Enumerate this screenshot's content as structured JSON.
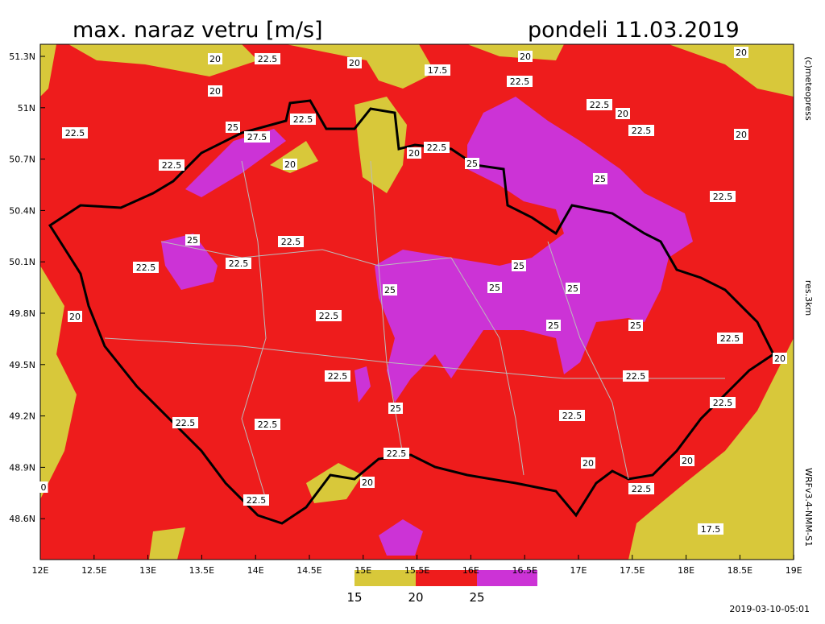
{
  "title": "max. naraz vetru [m/s]",
  "date": "pondeli 11.03.2019",
  "lat_labels": [
    "51.3N",
    "51N",
    "50.7N",
    "50.4N",
    "50.1N",
    "49.8N",
    "49.5N",
    "49.2N",
    "48.9N",
    "48.6N"
  ],
  "lon_labels": [
    "12E",
    "12.5E",
    "13E",
    "13.5E",
    "14E",
    "14.5E",
    "15E",
    "15.5E",
    "16E",
    "16.5E",
    "17E",
    "17.5E",
    "18E",
    "18.5E",
    "19E"
  ],
  "side_labels": [
    "(c)meteopress",
    "res.3km",
    "WRFv3.4-NMM-S1"
  ],
  "timestamp": "2019-03-10-05:01",
  "legend_labels": [
    "15",
    "20",
    "25"
  ],
  "contour_labels": [
    "20",
    "22.5",
    "20",
    "17.5",
    "20",
    "22.5",
    "20",
    "20",
    "22.5",
    "20",
    "22.5",
    "22.5",
    "25",
    "27.5",
    "22.5",
    "20",
    "22.5",
    "20",
    "22.5",
    "20",
    "25",
    "25",
    "22.5",
    "25",
    "22.5",
    "22.5",
    "22.5",
    "25",
    "25",
    "25",
    "25",
    "20",
    "22.5",
    "25",
    "25",
    "22.5",
    "20",
    "22.5",
    "22.5",
    "25",
    "22.5",
    "22.5",
    "22.5",
    "22.5",
    "22.5",
    "20",
    "20",
    "20",
    "0",
    "22.5",
    "22.5",
    "17.5"
  ]
}
